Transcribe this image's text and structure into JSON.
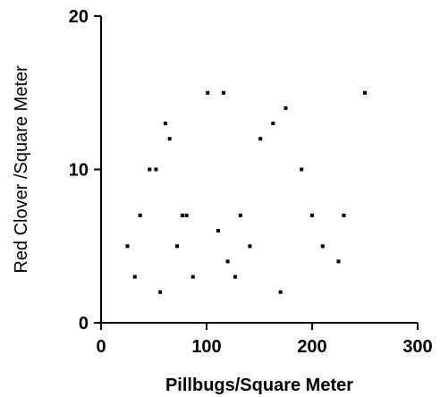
{
  "chart_data": {
    "type": "scatter",
    "title": "",
    "xlabel": "Pillbugs/Square Meter",
    "ylabel": "Red Clover /Square Meter",
    "xlim": [
      0,
      300
    ],
    "ylim": [
      0,
      20
    ],
    "xticks": [
      0,
      100,
      200,
      300
    ],
    "yticks": [
      0,
      10,
      20
    ],
    "grid": false,
    "marker_color": "#000000",
    "points": [
      {
        "x": 25,
        "y": 5
      },
      {
        "x": 32,
        "y": 3
      },
      {
        "x": 37,
        "y": 7
      },
      {
        "x": 46,
        "y": 10
      },
      {
        "x": 52,
        "y": 10
      },
      {
        "x": 56,
        "y": 2
      },
      {
        "x": 61,
        "y": 13
      },
      {
        "x": 65,
        "y": 12
      },
      {
        "x": 72,
        "y": 5
      },
      {
        "x": 77,
        "y": 7
      },
      {
        "x": 81,
        "y": 7
      },
      {
        "x": 87,
        "y": 3
      },
      {
        "x": 101,
        "y": 15
      },
      {
        "x": 111,
        "y": 6
      },
      {
        "x": 116,
        "y": 15
      },
      {
        "x": 120,
        "y": 4
      },
      {
        "x": 127,
        "y": 3
      },
      {
        "x": 132,
        "y": 7
      },
      {
        "x": 141,
        "y": 5
      },
      {
        "x": 151,
        "y": 12
      },
      {
        "x": 163,
        "y": 13
      },
      {
        "x": 170,
        "y": 2
      },
      {
        "x": 175,
        "y": 14
      },
      {
        "x": 190,
        "y": 10
      },
      {
        "x": 200,
        "y": 7
      },
      {
        "x": 210,
        "y": 5
      },
      {
        "x": 225,
        "y": 4
      },
      {
        "x": 230,
        "y": 7
      },
      {
        "x": 250,
        "y": 15
      }
    ]
  }
}
